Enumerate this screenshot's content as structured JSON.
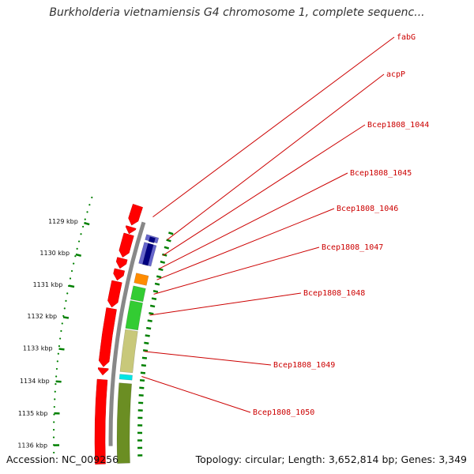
{
  "title": "Burkholderia vietnamiensis G4 chromosome 1, complete sequenc...",
  "footer": {
    "accession": "Accession: NC_009256",
    "summary": "Topology: circular; Length: 3,652,814 bp; Genes: 3,349"
  },
  "colors": {
    "backbone": "#888888",
    "reverse_cds": "#ff0000",
    "tick": "#008000",
    "label_line": "#cc0000",
    "label_text": "#cc0000"
  },
  "scale_marks": [
    {
      "label": "1129 kbp"
    },
    {
      "label": "1130 kbp"
    },
    {
      "label": "1131 kbp"
    },
    {
      "label": "1132 kbp"
    },
    {
      "label": "1133 kbp"
    },
    {
      "label": "1134 kbp"
    },
    {
      "label": "1135 kbp"
    },
    {
      "label": "1136 kbp"
    }
  ],
  "genes": [
    {
      "name": "fabG",
      "strand": "reverse",
      "color": "#ff0000"
    },
    {
      "name": "acpP",
      "strand": "forward",
      "color": "#6666cc"
    },
    {
      "name": "Bcep1808_1044",
      "strand": "forward",
      "color": "#000080"
    },
    {
      "name": "Bcep1808_1045",
      "strand": "forward",
      "color": "#6666cc"
    },
    {
      "name": "Bcep1808_1046",
      "strand": "forward",
      "color": "#ff8c00"
    },
    {
      "name": "Bcep1808_1047",
      "strand": "forward",
      "color": "#33cc33"
    },
    {
      "name": "Bcep1808_1048",
      "strand": "forward",
      "color": "#33cc33"
    },
    {
      "name": "Bcep1808_1049",
      "strand": "forward",
      "color": "#c8c87a"
    },
    {
      "name": "Bcep1808_1050",
      "strand": "forward",
      "color": "#00e5e5"
    }
  ]
}
